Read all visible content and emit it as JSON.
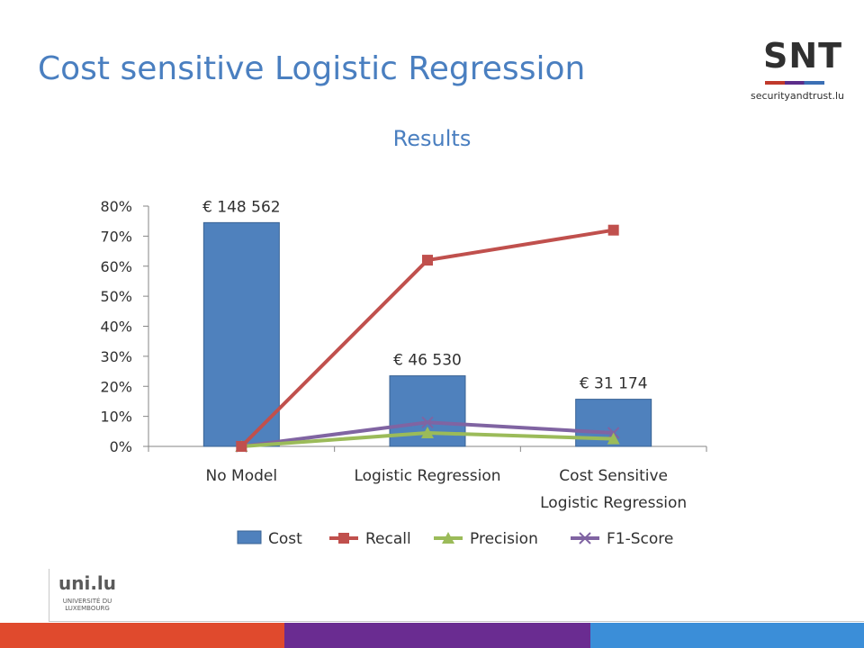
{
  "slide": {
    "title": "Cost sensitive Logistic Regression"
  },
  "logos": {
    "snt": {
      "mark": "SNT",
      "domain": "securityandtrust.lu"
    },
    "university": {
      "name": "uni.lu",
      "subtitle_line1": "UNIVERSITÉ DU",
      "subtitle_line2": "LUXEMBOURG"
    }
  },
  "colors": {
    "title": "#4a7fc0",
    "cost": "#4f81bd",
    "recall": "#c0504d",
    "precision": "#9bbb59",
    "f1": "#8064a2",
    "footer": [
      "#e04a2d",
      "#6a2c91",
      "#3b8ed8"
    ]
  },
  "chart_data": {
    "type": "bar",
    "title": "Results",
    "categories": [
      "No Model",
      "Logistic Regression",
      "Cost Sensitive Logistic Regression"
    ],
    "category_lines": [
      [
        "No Model"
      ],
      [
        "Logistic Regression"
      ],
      [
        "Cost Sensitive",
        "Logistic Regression"
      ]
    ],
    "ylim": [
      0,
      0.8
    ],
    "yticks": [
      0,
      0.1,
      0.2,
      0.3,
      0.4,
      0.5,
      0.6,
      0.7,
      0.8
    ],
    "ytick_labels": [
      "0%",
      "10%",
      "20%",
      "30%",
      "40%",
      "50%",
      "60%",
      "70%",
      "80%"
    ],
    "legend_position": "bottom",
    "series": [
      {
        "name": "Cost",
        "kind": "bar",
        "values": [
          0.745,
          0.235,
          0.157
        ],
        "data_labels": [
          "€ 148 562",
          "€ 46 530",
          "€ 31 174"
        ]
      },
      {
        "name": "Recall",
        "kind": "line",
        "marker": "square",
        "values": [
          0.0,
          0.62,
          0.72
        ]
      },
      {
        "name": "Precision",
        "kind": "line",
        "marker": "triangle",
        "values": [
          0.0,
          0.045,
          0.025
        ]
      },
      {
        "name": "F1-Score",
        "kind": "line",
        "marker": "x",
        "values": [
          0.0,
          0.08,
          0.045
        ]
      }
    ]
  }
}
